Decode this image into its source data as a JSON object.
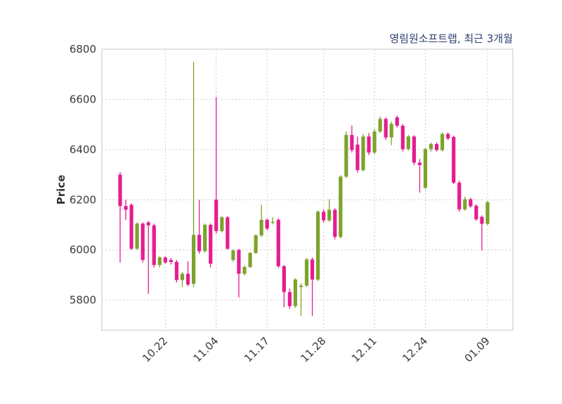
{
  "chart_data": {
    "type": "candlestick",
    "title": "영림원소프트랩, 최근 3개월",
    "ylabel": "Price",
    "ylim": [
      5680,
      6800
    ],
    "yticks": [
      5800,
      6000,
      6200,
      6400,
      6600,
      6800
    ],
    "xticks": [
      {
        "index": 8,
        "label": "10.22"
      },
      {
        "index": 17,
        "label": "11.04"
      },
      {
        "index": 26,
        "label": "11.17"
      },
      {
        "index": 36,
        "label": "11.28"
      },
      {
        "index": 45,
        "label": "12.11"
      },
      {
        "index": 54,
        "label": "12.24"
      },
      {
        "index": 65,
        "label": "01.09"
      }
    ],
    "grid": "dashed",
    "legend": "none",
    "up_color": "#7da32a",
    "down_color": "#e51d90",
    "grid_color": "#cccccc",
    "border_color": "#c4c4c4",
    "tick_color": "#3a3a3a",
    "ohlc_format": [
      "open",
      "high",
      "low",
      "close"
    ],
    "candles": [
      [
        6300,
        6310,
        5950,
        6175
      ],
      [
        6175,
        6200,
        6120,
        6160
      ],
      [
        6180,
        6185,
        6000,
        6005
      ],
      [
        6005,
        6110,
        6000,
        6105
      ],
      [
        6105,
        6110,
        5950,
        5960
      ],
      [
        6110,
        6115,
        5825,
        6098
      ],
      [
        6098,
        6105,
        5930,
        5940
      ],
      [
        5940,
        5975,
        5930,
        5970
      ],
      [
        5970,
        5975,
        5945,
        5950
      ],
      [
        5960,
        5968,
        5942,
        5952
      ],
      [
        5952,
        5960,
        5870,
        5880
      ],
      [
        5880,
        5912,
        5852,
        5905
      ],
      [
        5905,
        5955,
        5855,
        5862
      ],
      [
        5865,
        6750,
        5852,
        6060
      ],
      [
        6060,
        6200,
        5985,
        5995
      ],
      [
        5995,
        6105,
        5990,
        6100
      ],
      [
        6100,
        6105,
        5930,
        5945
      ],
      [
        6200,
        6610,
        6065,
        6075
      ],
      [
        6075,
        6135,
        6070,
        6130
      ],
      [
        6130,
        6135,
        6000,
        6005
      ],
      [
        5960,
        6002,
        5952,
        5998
      ],
      [
        6000,
        6005,
        5810,
        5905
      ],
      [
        5905,
        5938,
        5898,
        5932
      ],
      [
        5932,
        5992,
        5928,
        5988
      ],
      [
        5988,
        6062,
        5984,
        6058
      ],
      [
        6058,
        6180,
        6052,
        6120
      ],
      [
        6120,
        6126,
        6078,
        6085
      ],
      [
        6108,
        6130,
        6102,
        6112
      ],
      [
        6120,
        6126,
        5928,
        5935
      ],
      [
        5935,
        5940,
        5772,
        5832
      ],
      [
        5832,
        5846,
        5765,
        5776
      ],
      [
        5776,
        5888,
        5770,
        5882
      ],
      [
        5852,
        5868,
        5738,
        5858
      ],
      [
        5858,
        5968,
        5852,
        5962
      ],
      [
        5962,
        5970,
        5736,
        5882
      ],
      [
        5882,
        6158,
        5876,
        6152
      ],
      [
        6152,
        6162,
        6108,
        6118
      ],
      [
        6118,
        6202,
        6112,
        6160
      ],
      [
        6160,
        6166,
        6042,
        6052
      ],
      [
        6052,
        6298,
        6046,
        6292
      ],
      [
        6292,
        6472,
        6286,
        6458
      ],
      [
        6458,
        6496,
        6388,
        6398
      ],
      [
        6420,
        6452,
        6308,
        6318
      ],
      [
        6318,
        6462,
        6312,
        6452
      ],
      [
        6452,
        6466,
        6378,
        6388
      ],
      [
        6388,
        6482,
        6382,
        6472
      ],
      [
        6472,
        6532,
        6466,
        6522
      ],
      [
        6522,
        6528,
        6438,
        6448
      ],
      [
        6448,
        6512,
        6418,
        6502
      ],
      [
        6528,
        6535,
        6488,
        6495
      ],
      [
        6495,
        6502,
        6392,
        6402
      ],
      [
        6402,
        6458,
        6396,
        6452
      ],
      [
        6452,
        6458,
        6338,
        6348
      ],
      [
        6348,
        6362,
        6228,
        6338
      ],
      [
        6248,
        6408,
        6242,
        6402
      ],
      [
        6402,
        6428,
        6392,
        6422
      ],
      [
        6422,
        6428,
        6392,
        6398
      ],
      [
        6398,
        6468,
        6392,
        6462
      ],
      [
        6462,
        6468,
        6438,
        6444
      ],
      [
        6450,
        6456,
        6262,
        6268
      ],
      [
        6268,
        6276,
        6152,
        6162
      ],
      [
        6162,
        6212,
        6156,
        6202
      ],
      [
        6202,
        6208,
        6168,
        6174
      ],
      [
        6176,
        6182,
        6116,
        6122
      ],
      [
        6132,
        6138,
        5998,
        6104
      ],
      [
        6104,
        6196,
        6098,
        6190
      ]
    ]
  }
}
